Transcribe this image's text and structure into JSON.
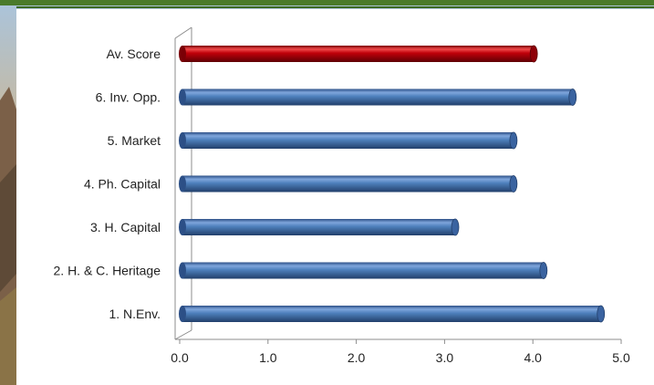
{
  "theme": {
    "header_bar_color": "#4a7a2a",
    "bar_color": "#4f81bd",
    "highlight_bar_color": "#c0000a"
  },
  "chart_data": {
    "type": "bar",
    "orientation": "horizontal",
    "categories": [
      "1. N.Env.",
      "2. H. & C. Heritage",
      "3. H. Capital",
      "4. Ph. Capital",
      "5. Market",
      "6. Inv. Opp.",
      "Av. Score"
    ],
    "values": [
      4.77,
      4.12,
      3.12,
      3.78,
      3.78,
      4.45,
      4.01
    ],
    "highlight_category": "Av. Score",
    "xlim": [
      0.0,
      5.0
    ],
    "xticks": [
      "0.0",
      "1.0",
      "2.0",
      "3.0",
      "4.0",
      "5.0"
    ],
    "grid": false,
    "legend": "none",
    "style": "3d-cylinder"
  }
}
